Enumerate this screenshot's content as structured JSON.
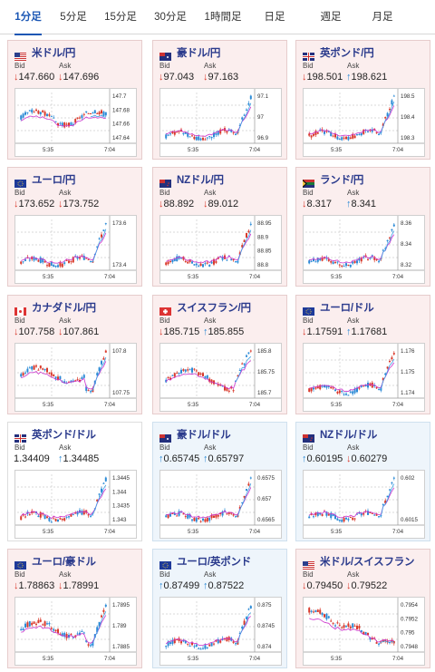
{
  "tabs": [
    "1分足",
    "5分足",
    "15分足",
    "30分足",
    "1時間足",
    "日足",
    "週足",
    "月足"
  ],
  "active_tab": 0,
  "labels": {
    "bid": "Bid",
    "ask": "Ask"
  },
  "x_ticks": [
    "5:35",
    "7:04"
  ],
  "colors": {
    "up": "#2b8ad6",
    "down": "#d93a2c",
    "ma": "#cc33cc",
    "pink": "#fbeeee",
    "blue": "#eef5fb"
  },
  "cards": [
    {
      "name": "米ドル/円",
      "flag": "flag-us",
      "bg": "pink",
      "bid": "147.660",
      "bid_dir": "down",
      "ask": "147.696",
      "ask_dir": "down",
      "ticks": [
        "147.7",
        "147.68",
        "147.66",
        "147.64"
      ],
      "trend": "flat-wavy"
    },
    {
      "name": "豪ドル/円",
      "flag": "flag-au",
      "bg": "pink",
      "bid": "97.043",
      "bid_dir": "down",
      "ask": "97.163",
      "ask_dir": "down",
      "ticks": [
        "97.1",
        "97",
        "96.9"
      ],
      "trend": "spike-up"
    },
    {
      "name": "英ポンド/円",
      "flag": "flag-gb",
      "bg": "pink",
      "bid": "198.501",
      "bid_dir": "down",
      "ask": "198.621",
      "ask_dir": "up",
      "ticks": [
        "198.5",
        "198.4",
        "198.3"
      ],
      "trend": "spike-up"
    },
    {
      "name": "ユーロ/円",
      "flag": "flag-eu",
      "bg": "pink",
      "bid": "173.652",
      "bid_dir": "down",
      "ask": "173.752",
      "ask_dir": "down",
      "ticks": [
        "173.6",
        "173.4"
      ],
      "trend": "spike-up"
    },
    {
      "name": "NZドル/円",
      "flag": "flag-nz",
      "bg": "pink",
      "bid": "88.892",
      "bid_dir": "down",
      "ask": "89.012",
      "ask_dir": "down",
      "ticks": [
        "88.95",
        "88.9",
        "88.85",
        "88.8"
      ],
      "trend": "spike-up"
    },
    {
      "name": "ランド/円",
      "flag": "flag-za",
      "bg": "pink",
      "bid": "8.317",
      "bid_dir": "down",
      "ask": "8.341",
      "ask_dir": "up",
      "ticks": [
        "8.36",
        "8.34",
        "8.32"
      ],
      "trend": "spike-up"
    },
    {
      "name": "カナダドル/円",
      "flag": "flag-ca",
      "bg": "pink",
      "bid": "107.758",
      "bid_dir": "down",
      "ask": "107.861",
      "ask_dir": "down",
      "ticks": [
        "107.8",
        "107.75"
      ],
      "trend": "dip-then-up"
    },
    {
      "name": "スイスフラン/円",
      "flag": "flag-ch",
      "bg": "pink",
      "bid": "185.715",
      "bid_dir": "down",
      "ask": "185.855",
      "ask_dir": "up",
      "ticks": [
        "185.8",
        "185.75",
        "185.7"
      ],
      "trend": "wave-up"
    },
    {
      "name": "ユーロ/ドル",
      "flag": "flag-eu-us",
      "bg": "pink",
      "bid": "1.17591",
      "bid_dir": "down",
      "ask": "1.17681",
      "ask_dir": "up",
      "ticks": [
        "1.176",
        "1.175",
        "1.174"
      ],
      "trend": "spike-up"
    },
    {
      "name": "英ポンド/ドル",
      "flag": "flag-gb-us",
      "bg": "white",
      "bid": "1.34409",
      "bid_dir": "none",
      "ask": "1.34485",
      "ask_dir": "up",
      "ticks": [
        "1.3445",
        "1.344",
        "1.3435",
        "1.343"
      ],
      "trend": "spike-up"
    },
    {
      "name": "豪ドル/ドル",
      "flag": "flag-au-us",
      "bg": "blue",
      "bid": "0.65745",
      "bid_dir": "up",
      "ask": "0.65797",
      "ask_dir": "up",
      "ticks": [
        "0.6575",
        "0.657",
        "0.6565"
      ],
      "trend": "spike-up"
    },
    {
      "name": "NZドル/ドル",
      "flag": "flag-nz-us",
      "bg": "blue",
      "bid": "0.60195",
      "bid_dir": "up",
      "ask": "0.60279",
      "ask_dir": "down",
      "ticks": [
        "0.602",
        "0.6015"
      ],
      "trend": "spike-up"
    },
    {
      "name": "ユーロ/豪ドル",
      "flag": "flag-eu-au",
      "bg": "pink",
      "bid": "1.78863",
      "bid_dir": "down",
      "ask": "1.78991",
      "ask_dir": "down",
      "ticks": [
        "1.7895",
        "1.789",
        "1.7885"
      ],
      "trend": "dip-then-up"
    },
    {
      "name": "ユーロ/英ポンド",
      "flag": "flag-eu-gb",
      "bg": "blue",
      "bid": "0.87499",
      "bid_dir": "up",
      "ask": "0.87522",
      "ask_dir": "up",
      "ticks": [
        "0.875",
        "0.8745",
        "0.874"
      ],
      "trend": "spike-up"
    },
    {
      "name": "米ドル/スイスフラン",
      "flag": "flag-us-ch",
      "bg": "pink",
      "bid": "0.79450",
      "bid_dir": "down",
      "ask": "0.79522",
      "ask_dir": "down",
      "ticks": [
        "0.7954",
        "0.7952",
        "0.795",
        "0.7948"
      ],
      "trend": "down"
    }
  ]
}
